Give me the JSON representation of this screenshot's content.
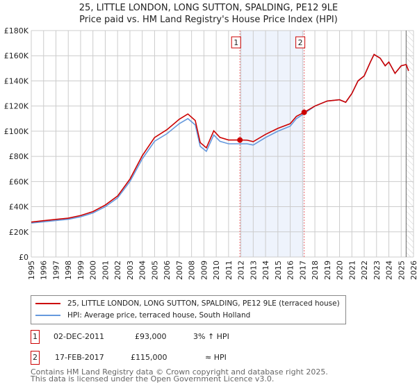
{
  "title": "25, LITTLE LONDON, LONG SUTTON, SPALDING, PE12 9LE",
  "subtitle": "Price paid vs. HM Land Registry's House Price Index (HPI)",
  "chart_data": {
    "type": "line",
    "xlim": [
      1995,
      2026
    ],
    "ylim": [
      0,
      180000
    ],
    "xticks": [
      1995,
      1996,
      1997,
      1998,
      1999,
      2000,
      2001,
      2002,
      2003,
      2004,
      2005,
      2006,
      2007,
      2008,
      2009,
      2010,
      2011,
      2012,
      2013,
      2014,
      2015,
      2016,
      2017,
      2018,
      2019,
      2020,
      2021,
      2022,
      2023,
      2024,
      2025,
      2026
    ],
    "yticks": [
      {
        "v": 0,
        "label": "£0"
      },
      {
        "v": 20000,
        "label": "£20K"
      },
      {
        "v": 40000,
        "label": "£40K"
      },
      {
        "v": 60000,
        "label": "£60K"
      },
      {
        "v": 80000,
        "label": "£80K"
      },
      {
        "v": 100000,
        "label": "£100K"
      },
      {
        "v": 120000,
        "label": "£120K"
      },
      {
        "v": 140000,
        "label": "£140K"
      },
      {
        "v": 160000,
        "label": "£160K"
      },
      {
        "v": 180000,
        "label": "£180K"
      }
    ],
    "grid": true,
    "shaded_period": [
      2011.92,
      2017.13
    ],
    "forecast_from": 2025.4,
    "series": [
      {
        "name": "25, LITTLE LONDON, LONG SUTTON, SPALDING, PE12 9LE (terraced house)",
        "color": "#cc0000",
        "points": [
          [
            1995,
            27800
          ],
          [
            1996,
            28900
          ],
          [
            1997,
            29900
          ],
          [
            1998,
            30900
          ],
          [
            1999,
            33000
          ],
          [
            2000,
            36100
          ],
          [
            2001,
            41300
          ],
          [
            2002,
            48500
          ],
          [
            2003,
            61900
          ],
          [
            2004,
            80500
          ],
          [
            2005,
            95000
          ],
          [
            2006,
            101200
          ],
          [
            2007,
            109500
          ],
          [
            2007.7,
            113700
          ],
          [
            2008.3,
            108500
          ],
          [
            2008.7,
            91000
          ],
          [
            2009.2,
            86800
          ],
          [
            2009.8,
            100300
          ],
          [
            2010.3,
            95100
          ],
          [
            2011,
            93000
          ],
          [
            2011.92,
            93000
          ],
          [
            2012.5,
            92900
          ],
          [
            2013,
            91700
          ],
          [
            2014,
            97500
          ],
          [
            2015,
            102300
          ],
          [
            2016,
            106000
          ],
          [
            2016.5,
            111800
          ],
          [
            2017.13,
            115000
          ],
          [
            2018,
            120000
          ],
          [
            2019,
            124000
          ],
          [
            2020,
            125000
          ],
          [
            2020.5,
            123000
          ],
          [
            2021,
            130000
          ],
          [
            2021.5,
            140000
          ],
          [
            2022,
            144000
          ],
          [
            2022.5,
            155000
          ],
          [
            2022.8,
            161000
          ],
          [
            2023.3,
            158000
          ],
          [
            2023.7,
            152000
          ],
          [
            2024,
            155000
          ],
          [
            2024.5,
            146000
          ],
          [
            2025,
            152000
          ],
          [
            2025.4,
            153000
          ],
          [
            2025.6,
            148000
          ]
        ]
      },
      {
        "name": "HPI: Average price, terraced house, South Holland",
        "color": "#6699dd",
        "points": [
          [
            1995,
            27000
          ],
          [
            1996,
            28000
          ],
          [
            1997,
            29000
          ],
          [
            1998,
            30000
          ],
          [
            1999,
            32000
          ],
          [
            2000,
            35000
          ],
          [
            2001,
            40000
          ],
          [
            2002,
            47000
          ],
          [
            2003,
            60000
          ],
          [
            2004,
            78000
          ],
          [
            2005,
            92000
          ],
          [
            2006,
            98000
          ],
          [
            2007,
            106000
          ],
          [
            2007.7,
            110000
          ],
          [
            2008.3,
            105000
          ],
          [
            2008.7,
            88000
          ],
          [
            2009.2,
            84000
          ],
          [
            2009.8,
            97000
          ],
          [
            2010.3,
            92000
          ],
          [
            2011,
            90000
          ],
          [
            2011.92,
            90000
          ],
          [
            2012.5,
            90000
          ],
          [
            2013,
            89000
          ],
          [
            2014,
            95000
          ],
          [
            2015,
            100000
          ],
          [
            2016,
            104000
          ],
          [
            2016.5,
            110000
          ],
          [
            2017.13,
            114000
          ],
          [
            2018,
            120000
          ],
          [
            2019,
            124000
          ],
          [
            2020,
            125000
          ],
          [
            2020.5,
            123000
          ],
          [
            2021,
            130000
          ],
          [
            2021.5,
            140000
          ],
          [
            2022,
            144000
          ],
          [
            2022.5,
            155000
          ],
          [
            2022.8,
            161000
          ],
          [
            2023.3,
            158000
          ],
          [
            2023.7,
            152000
          ],
          [
            2024,
            155000
          ],
          [
            2024.5,
            146000
          ],
          [
            2025,
            152000
          ],
          [
            2025.4,
            153000
          ],
          [
            2025.6,
            148000
          ]
        ]
      }
    ],
    "sales": [
      {
        "label": "1",
        "x": 2011.92,
        "y": 93000
      },
      {
        "label": "2",
        "x": 2017.13,
        "y": 115000
      }
    ]
  },
  "legend": {
    "property": "25, LITTLE LONDON, LONG SUTTON, SPALDING, PE12 9LE (terraced house)",
    "hpi": "HPI: Average price, terraced house, South Holland"
  },
  "transactions": [
    {
      "n": "1",
      "date": "02-DEC-2011",
      "price": "£93,000",
      "rel": "3% ↑ HPI"
    },
    {
      "n": "2",
      "date": "17-FEB-2017",
      "price": "£115,000",
      "rel": "≈ HPI"
    }
  ],
  "footer": {
    "line1": "Contains HM Land Registry data © Crown copyright and database right 2025.",
    "line2": "This data is licensed under the Open Government Licence v3.0."
  }
}
